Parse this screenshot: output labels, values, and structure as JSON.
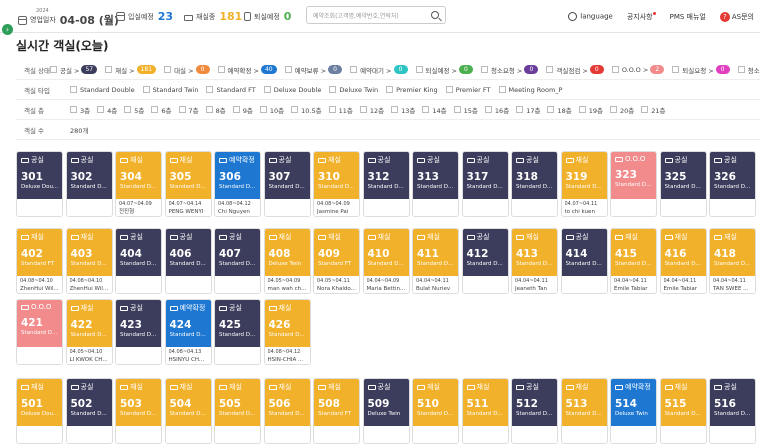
{
  "topbar": {
    "year": "2024",
    "biz_date_label": "영업일자",
    "biz_date": "04-08 (월)",
    "checkin_label": "입실예정",
    "checkin_count": "23",
    "stay_label": "재실중",
    "stay_count": "181",
    "checkout_label": "퇴실예정",
    "checkout_count": "0",
    "search_placeholder": "예약조회(고객명,예약번호,연락처)",
    "language": "language",
    "notice": "공지사항",
    "manual": "PMS 매뉴얼",
    "inquiry": "AS문의"
  },
  "page_title": "실시간 객실(오늘)",
  "filters": {
    "status_label": "객실 상태",
    "statuses": [
      {
        "label": "공실 >",
        "count": "57",
        "color": "#3c3d5c"
      },
      {
        "label": "재실 >",
        "count": "181",
        "color": "#f2b12a"
      },
      {
        "label": "대실 >",
        "count": "0",
        "color": "#f08a3c"
      },
      {
        "label": "예약확정 >",
        "count": "40",
        "color": "#1e78d2"
      },
      {
        "label": "예약보류 >",
        "count": "0",
        "color": "#6b7fa0"
      },
      {
        "label": "예약대기 >",
        "count": "0",
        "color": "#2ec4c4"
      },
      {
        "label": "퇴실예정 >",
        "count": "0",
        "color": "#4caf50"
      },
      {
        "label": "청소요청 >",
        "count": "0",
        "color": "#6a3d9a"
      },
      {
        "label": "객실점검 >",
        "count": "0",
        "color": "#e53935"
      },
      {
        "label": "O.O.O >",
        "count": "2",
        "color": "#f28c8c"
      },
      {
        "label": "퇴실요청 >",
        "count": "0",
        "color": "#e040c0"
      },
      {
        "label": "청소보",
        "count": "",
        "color": ""
      }
    ],
    "type_label": "객실 타입",
    "types": [
      "Standard Double",
      "Standard Twin",
      "Standard FT",
      "Deluxe Double",
      "Deluxe Twin",
      "Premier King",
      "Premier FT",
      "Meeting Room_P"
    ],
    "floor_label": "객실 층",
    "floors": [
      "3층",
      "4층",
      "5층",
      "6층",
      "7층",
      "8층",
      "9층",
      "10층",
      "10.5층",
      "11층",
      "12층",
      "13층",
      "14층",
      "15층",
      "16층",
      "17층",
      "18층",
      "19층",
      "20층",
      "21층"
    ],
    "count_label": "객실 수",
    "room_count": "280개"
  },
  "status_colors": {
    "공실": "#3c3d5c",
    "재실": "#f2b12a",
    "예약확정": "#1e78d2",
    "O.O.O": "#f28c8c"
  },
  "rooms_row1": [
    {
      "status": "공실",
      "no": "301",
      "type": "Deluxe Dou...",
      "date": "",
      "guest": ""
    },
    {
      "status": "공실",
      "no": "302",
      "type": "Standard D...",
      "date": "",
      "guest": ""
    },
    {
      "status": "재실",
      "no": "304",
      "type": "Standard D...",
      "date": "04.07~04.09",
      "guest": "전진형"
    },
    {
      "status": "재실",
      "no": "305",
      "type": "Standard D...",
      "date": "04.07~04.14",
      "guest": "PENG WENYI"
    },
    {
      "status": "예약확정",
      "no": "306",
      "type": "Standard D...",
      "date": "04.08~04.12",
      "guest": "Chi Nguyen"
    },
    {
      "status": "공실",
      "no": "307",
      "type": "Standard D...",
      "date": "",
      "guest": ""
    },
    {
      "status": "재실",
      "no": "310",
      "type": "Standard D...",
      "date": "04.08~04.09",
      "guest": "Jasmine Pai"
    },
    {
      "status": "공실",
      "no": "312",
      "type": "Standard D...",
      "date": "",
      "guest": ""
    },
    {
      "status": "공실",
      "no": "313",
      "type": "Standard D...",
      "date": "",
      "guest": ""
    },
    {
      "status": "공실",
      "no": "317",
      "type": "Standard D...",
      "date": "",
      "guest": ""
    },
    {
      "status": "공실",
      "no": "318",
      "type": "Standard D...",
      "date": "",
      "guest": ""
    },
    {
      "status": "재실",
      "no": "319",
      "type": "Standard D...",
      "date": "04.07~04.11",
      "guest": "to chi kuen"
    },
    {
      "status": "O.O.O",
      "no": "323",
      "type": "Standard D...",
      "date": "",
      "guest": ""
    },
    {
      "status": "공실",
      "no": "325",
      "type": "Standard D...",
      "date": "",
      "guest": ""
    },
    {
      "status": "공실",
      "no": "326",
      "type": "Standard D...",
      "date": "",
      "guest": ""
    }
  ],
  "rooms_row2": [
    {
      "status": "재실",
      "no": "402",
      "type": "Standard FT",
      "date": "04.08~04.10",
      "guest": "ZhenHui Wil..."
    },
    {
      "status": "재실",
      "no": "403",
      "type": "Standard D...",
      "date": "04.08~04.10",
      "guest": "ZhenHui Wil..."
    },
    {
      "status": "공실",
      "no": "404",
      "type": "Standard D...",
      "date": "",
      "guest": ""
    },
    {
      "status": "공실",
      "no": "406",
      "type": "Standard D...",
      "date": "",
      "guest": ""
    },
    {
      "status": "공실",
      "no": "407",
      "type": "Standard D...",
      "date": "",
      "guest": ""
    },
    {
      "status": "재실",
      "no": "408",
      "type": "Deluxe Twin",
      "date": "04.05~04.09",
      "guest": "man wah ch..."
    },
    {
      "status": "재실",
      "no": "409",
      "type": "Standard FT",
      "date": "04.05~04.11",
      "guest": "Nora Khaldo..."
    },
    {
      "status": "재실",
      "no": "410",
      "type": "Standard D...",
      "date": "04.04~04.09",
      "guest": "Maria Bettin..."
    },
    {
      "status": "재실",
      "no": "411",
      "type": "Standard D...",
      "date": "04.04~04.11",
      "guest": "Bulat Nuriev"
    },
    {
      "status": "공실",
      "no": "412",
      "type": "Standard D...",
      "date": "",
      "guest": ""
    },
    {
      "status": "재실",
      "no": "413",
      "type": "Standard D...",
      "date": "04.04~04.11",
      "guest": "Jeaneth Tan"
    },
    {
      "status": "공실",
      "no": "414",
      "type": "Standard D...",
      "date": "",
      "guest": ""
    },
    {
      "status": "재실",
      "no": "415",
      "type": "Standard D...",
      "date": "04.04~04.11",
      "guest": "Emile Tabiar"
    },
    {
      "status": "재실",
      "no": "416",
      "type": "Standard D...",
      "date": "04.04~04.11",
      "guest": "Emile Tabiar"
    },
    {
      "status": "재실",
      "no": "418",
      "type": "Standard D...",
      "date": "04.04~04.11",
      "guest": "TAN SWEE ..."
    }
  ],
  "rooms_row3": [
    {
      "status": "O.O.O",
      "no": "421",
      "type": "Standard D...",
      "date": "",
      "guest": ""
    },
    {
      "status": "재실",
      "no": "422",
      "type": "Standard D...",
      "date": "04.05~04.10",
      "guest": "LI KWOK CH..."
    },
    {
      "status": "공실",
      "no": "423",
      "type": "Standard D...",
      "date": "",
      "guest": ""
    },
    {
      "status": "예약확정",
      "no": "424",
      "type": "Standard D...",
      "date": "04.08~04.13",
      "guest": "HSINYU CH..."
    },
    {
      "status": "공실",
      "no": "425",
      "type": "Standard D...",
      "date": "",
      "guest": ""
    },
    {
      "status": "재실",
      "no": "426",
      "type": "Standard D...",
      "date": "04.08~04.12",
      "guest": "HSIN-CHIA ..."
    }
  ],
  "rooms_row4": [
    {
      "status": "재실",
      "no": "501",
      "type": "Deluxe Dou...",
      "date": "",
      "guest": ""
    },
    {
      "status": "공실",
      "no": "502",
      "type": "Standard D...",
      "date": "",
      "guest": ""
    },
    {
      "status": "재실",
      "no": "503",
      "type": "Standard D...",
      "date": "",
      "guest": ""
    },
    {
      "status": "재실",
      "no": "504",
      "type": "Standard D...",
      "date": "",
      "guest": ""
    },
    {
      "status": "재실",
      "no": "505",
      "type": "Standard D...",
      "date": "",
      "guest": ""
    },
    {
      "status": "재실",
      "no": "506",
      "type": "Standard D...",
      "date": "",
      "guest": ""
    },
    {
      "status": "재실",
      "no": "508",
      "type": "Standard FT",
      "date": "",
      "guest": ""
    },
    {
      "status": "공실",
      "no": "509",
      "type": "Deluxe Twin",
      "date": "",
      "guest": ""
    },
    {
      "status": "재실",
      "no": "510",
      "type": "Standard D...",
      "date": "",
      "guest": ""
    },
    {
      "status": "재실",
      "no": "511",
      "type": "Standard D...",
      "date": "",
      "guest": ""
    },
    {
      "status": "공실",
      "no": "512",
      "type": "Standard D...",
      "date": "",
      "guest": ""
    },
    {
      "status": "재실",
      "no": "513",
      "type": "Standard D...",
      "date": "",
      "guest": ""
    },
    {
      "status": "예약확정",
      "no": "514",
      "type": "Deluxe Twin",
      "date": "",
      "guest": ""
    },
    {
      "status": "재실",
      "no": "515",
      "type": "Standard D...",
      "date": "",
      "guest": ""
    },
    {
      "status": "공실",
      "no": "516",
      "type": "Standard D...",
      "date": "",
      "guest": ""
    }
  ]
}
